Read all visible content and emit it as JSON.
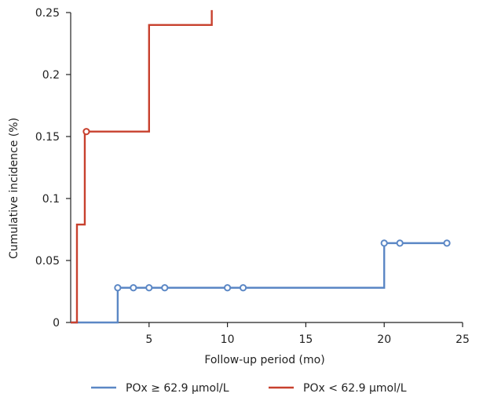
{
  "chart_data": {
    "type": "line",
    "subtype": "step",
    "title": "",
    "xlabel": "Follow-up period (mo)",
    "ylabel": "Cumulative incidence (%)",
    "xlim": [
      0,
      25
    ],
    "ylim": [
      0,
      0.25
    ],
    "x_ticks": [
      5,
      10,
      15,
      20,
      25
    ],
    "x_tick_labels": [
      "5",
      "10",
      "15",
      "20",
      "25"
    ],
    "y_ticks": [
      0,
      0.05,
      0.1,
      0.15,
      0.2,
      0.25
    ],
    "y_tick_labels": [
      "0",
      "0.05",
      "0.1",
      "0.15",
      "0.2",
      "0.25"
    ],
    "grid": false,
    "legend_position": "bottom",
    "series": [
      {
        "name": "POx ≥ 62.9 μmol/L",
        "color": "#5b87c5",
        "steps": [
          [
            0,
            0
          ],
          [
            3,
            0.028
          ],
          [
            20,
            0.064
          ],
          [
            24,
            0.064
          ]
        ],
        "censored": [
          [
            3,
            0.028
          ],
          [
            4,
            0.028
          ],
          [
            5,
            0.028
          ],
          [
            6,
            0.028
          ],
          [
            10,
            0.028
          ],
          [
            11,
            0.028
          ],
          [
            20,
            0.064
          ],
          [
            21,
            0.064
          ],
          [
            24,
            0.064
          ]
        ]
      },
      {
        "name": "POx < 62.9 μmol/L",
        "color": "#c8412e",
        "steps": [
          [
            0,
            0
          ],
          [
            0.4,
            0.079
          ],
          [
            0.9,
            0.154
          ],
          [
            5,
            0.24
          ],
          [
            9,
            0.252
          ]
        ],
        "censored": [
          [
            1,
            0.154
          ]
        ]
      }
    ]
  }
}
